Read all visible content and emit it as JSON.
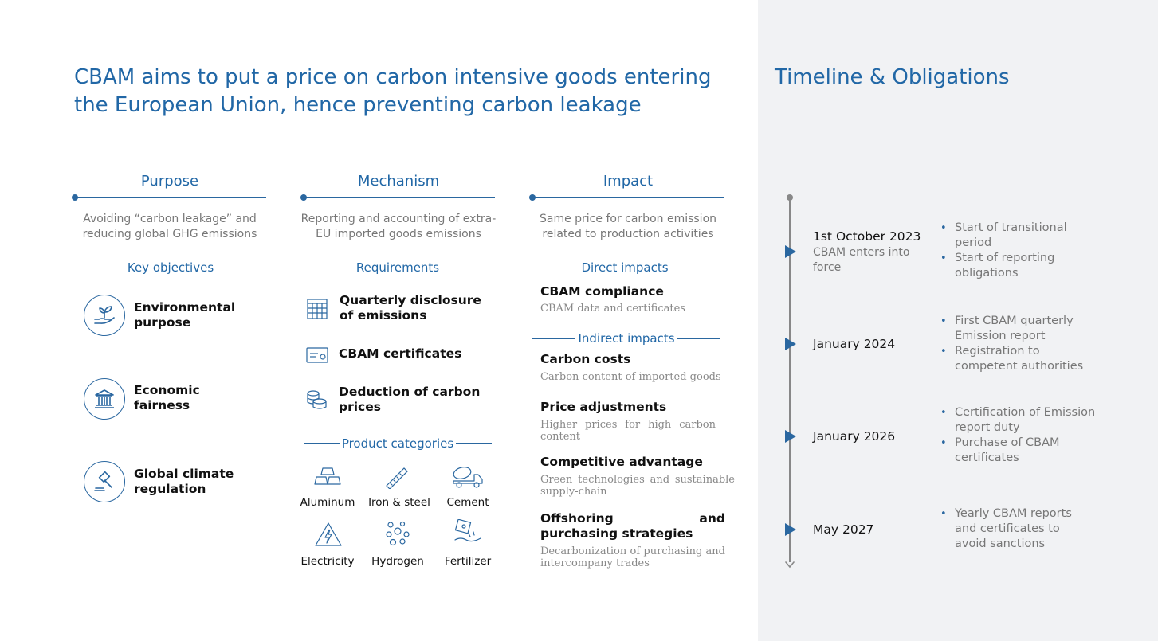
{
  "title": "CBAM aims to put a price on carbon intensive goods entering the European Union, hence preventing carbon leakage",
  "timeline_title": "Timeline & Obligations",
  "purpose": {
    "heading": "Purpose",
    "desc": "Avoiding “carbon leakage” and reducing global GHG emissions",
    "subheading": "Key objectives",
    "objectives": [
      {
        "label": "Environmental purpose",
        "icon": "plant-hand-icon"
      },
      {
        "label": "Economic fairness",
        "icon": "bank-building-icon"
      },
      {
        "label": "Global climate regulation",
        "icon": "gavel-icon"
      }
    ]
  },
  "mechanism": {
    "heading": "Mechanism",
    "desc": "Reporting and accounting of extra-EU imported goods emissions",
    "subheading": "Requirements",
    "requirements": [
      {
        "label": "Quarterly disclosure of emissions",
        "icon": "calendar-grid-icon"
      },
      {
        "label": "CBAM certificates",
        "icon": "certificate-icon"
      },
      {
        "label": "Deduction of carbon prices",
        "icon": "coins-icon"
      }
    ],
    "categories_heading": "Product categories",
    "categories": [
      {
        "label": "Aluminum",
        "icon": "ingots-icon"
      },
      {
        "label": "Iron & steel",
        "icon": "steel-bar-icon"
      },
      {
        "label": "Cement",
        "icon": "cement-truck-icon"
      },
      {
        "label": "Electricity",
        "icon": "lightning-icon"
      },
      {
        "label": "Hydrogen",
        "icon": "molecules-icon"
      },
      {
        "label": "Fertilizer",
        "icon": "fertilizer-icon"
      }
    ]
  },
  "impact": {
    "heading": "Impact",
    "desc": "Same price for carbon emission related to production activities",
    "direct_heading": "Direct impacts",
    "direct": [
      {
        "title": "CBAM compliance",
        "desc": "CBAM data and certificates"
      }
    ],
    "indirect_heading": "Indirect impacts",
    "indirect": [
      {
        "title": "Carbon costs",
        "desc": "Carbon content of imported goods"
      },
      {
        "title": "Price adjustments",
        "desc": "Higher prices for high carbon content"
      },
      {
        "title": "Competitive advantage",
        "desc": "Green technologies and sustainable supply-chain"
      },
      {
        "title": "Offshoring and purchasing strategies",
        "desc": "Decarbonization of purchasing and intercompany trades"
      }
    ]
  },
  "timeline": [
    {
      "date": "1st October 2023",
      "sub": "CBAM enters into force",
      "bullets": [
        "Start of transitional period",
        "Start of reporting obligations"
      ]
    },
    {
      "date": "January 2024",
      "sub": "",
      "bullets": [
        "First CBAM quarterly Emission report",
        "Registration to competent authorities"
      ]
    },
    {
      "date": "January 2026",
      "sub": "",
      "bullets": [
        "Certification of Emission report duty",
        "Purchase of CBAM certificates"
      ]
    },
    {
      "date": "May 2027",
      "sub": "",
      "bullets": [
        "Yearly CBAM reports and certificates to avoid sanctions"
      ]
    }
  ],
  "colors": {
    "accent": "#2167a6",
    "panel": "#f1f2f4",
    "muted_text": "#777777"
  }
}
